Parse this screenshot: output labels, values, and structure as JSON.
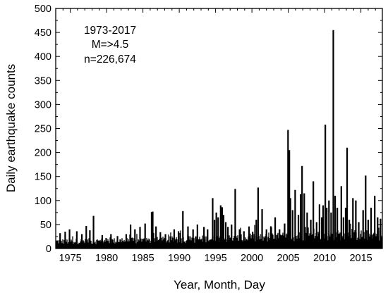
{
  "chart_data": {
    "type": "bar",
    "title": "",
    "xlabel": "Year, Month, Day",
    "ylabel": "Daily earthquake counts",
    "xlim": [
      1973,
      2017.95
    ],
    "ylim": [
      0,
      500
    ],
    "xticks": [
      1975,
      1980,
      1985,
      1990,
      1995,
      2000,
      2005,
      2010,
      2015
    ],
    "yticks": [
      0,
      50,
      100,
      150,
      200,
      250,
      300,
      350,
      400,
      450,
      500
    ],
    "grid": false,
    "legend": "none",
    "bar_color": "#000000",
    "annotation": [
      "1973-2017",
      "M=>4.5",
      "n=226,674"
    ],
    "total_events": 226674,
    "baseline": [
      [
        1973,
        16
      ],
      [
        1976,
        16
      ],
      [
        1980,
        17
      ],
      [
        1985,
        18
      ],
      [
        1990,
        20
      ],
      [
        1995,
        22
      ],
      [
        2000,
        23
      ],
      [
        2004,
        26
      ],
      [
        2008,
        29
      ],
      [
        2012,
        30
      ],
      [
        2017.95,
        30
      ]
    ],
    "peaks": [
      {
        "x": 1973.6,
        "y": 32
      },
      {
        "x": 1974.3,
        "y": 35
      },
      {
        "x": 1974.9,
        "y": 40
      },
      {
        "x": 1975.9,
        "y": 36
      },
      {
        "x": 1976.6,
        "y": 30
      },
      {
        "x": 1977.2,
        "y": 47
      },
      {
        "x": 1977.7,
        "y": 38
      },
      {
        "x": 1978.2,
        "y": 68
      },
      {
        "x": 1979.4,
        "y": 28
      },
      {
        "x": 1980.6,
        "y": 30
      },
      {
        "x": 1981.5,
        "y": 26
      },
      {
        "x": 1982.7,
        "y": 30
      },
      {
        "x": 1983.3,
        "y": 50
      },
      {
        "x": 1983.9,
        "y": 40
      },
      {
        "x": 1984.6,
        "y": 45
      },
      {
        "x": 1985.3,
        "y": 52
      },
      {
        "x": 1986.2,
        "y": 76
      },
      {
        "x": 1986.35,
        "y": 77
      },
      {
        "x": 1986.8,
        "y": 46
      },
      {
        "x": 1987.4,
        "y": 34
      },
      {
        "x": 1988.1,
        "y": 30
      },
      {
        "x": 1989.3,
        "y": 40
      },
      {
        "x": 1989.9,
        "y": 36
      },
      {
        "x": 1990.5,
        "y": 78
      },
      {
        "x": 1991.2,
        "y": 46
      },
      {
        "x": 1991.9,
        "y": 40
      },
      {
        "x": 1992.5,
        "y": 50
      },
      {
        "x": 1993.4,
        "y": 45
      },
      {
        "x": 1993.9,
        "y": 40
      },
      {
        "x": 1994.6,
        "y": 105
      },
      {
        "x": 1994.85,
        "y": 60
      },
      {
        "x": 1995.1,
        "y": 75
      },
      {
        "x": 1995.35,
        "y": 65
      },
      {
        "x": 1995.7,
        "y": 90
      },
      {
        "x": 1995.9,
        "y": 86
      },
      {
        "x": 1996.1,
        "y": 70
      },
      {
        "x": 1996.4,
        "y": 55
      },
      {
        "x": 1996.7,
        "y": 45
      },
      {
        "x": 1997.2,
        "y": 50
      },
      {
        "x": 1997.7,
        "y": 124
      },
      {
        "x": 1998.3,
        "y": 40
      },
      {
        "x": 1998.9,
        "y": 36
      },
      {
        "x": 1999.6,
        "y": 46
      },
      {
        "x": 2000.1,
        "y": 35
      },
      {
        "x": 2000.6,
        "y": 60
      },
      {
        "x": 2000.85,
        "y": 127
      },
      {
        "x": 2001.4,
        "y": 82
      },
      {
        "x": 2002.0,
        "y": 40
      },
      {
        "x": 2002.6,
        "y": 46
      },
      {
        "x": 2003.2,
        "y": 65
      },
      {
        "x": 2003.8,
        "y": 40
      },
      {
        "x": 2004.5,
        "y": 52
      },
      {
        "x": 2004.97,
        "y": 247
      },
      {
        "x": 2005.15,
        "y": 205
      },
      {
        "x": 2005.3,
        "y": 105
      },
      {
        "x": 2005.6,
        "y": 80
      },
      {
        "x": 2005.95,
        "y": 122
      },
      {
        "x": 2006.4,
        "y": 70
      },
      {
        "x": 2006.7,
        "y": 113
      },
      {
        "x": 2006.9,
        "y": 172
      },
      {
        "x": 2007.2,
        "y": 115
      },
      {
        "x": 2007.6,
        "y": 75
      },
      {
        "x": 2008.1,
        "y": 60
      },
      {
        "x": 2008.45,
        "y": 140
      },
      {
        "x": 2008.9,
        "y": 55
      },
      {
        "x": 2009.3,
        "y": 92
      },
      {
        "x": 2009.6,
        "y": 65
      },
      {
        "x": 2009.8,
        "y": 90
      },
      {
        "x": 2010.1,
        "y": 258
      },
      {
        "x": 2010.3,
        "y": 85
      },
      {
        "x": 2010.6,
        "y": 100
      },
      {
        "x": 2010.9,
        "y": 75
      },
      {
        "x": 2011.2,
        "y": 455
      },
      {
        "x": 2011.45,
        "y": 110
      },
      {
        "x": 2011.75,
        "y": 85
      },
      {
        "x": 2012.3,
        "y": 130
      },
      {
        "x": 2012.6,
        "y": 65
      },
      {
        "x": 2012.9,
        "y": 85
      },
      {
        "x": 2013.1,
        "y": 210
      },
      {
        "x": 2013.4,
        "y": 60
      },
      {
        "x": 2013.9,
        "y": 105
      },
      {
        "x": 2014.3,
        "y": 100
      },
      {
        "x": 2014.7,
        "y": 55
      },
      {
        "x": 2015.3,
        "y": 80
      },
      {
        "x": 2015.65,
        "y": 152
      },
      {
        "x": 2016.0,
        "y": 60
      },
      {
        "x": 2016.4,
        "y": 85
      },
      {
        "x": 2016.9,
        "y": 110
      },
      {
        "x": 2017.3,
        "y": 65
      },
      {
        "x": 2017.7,
        "y": 62
      }
    ]
  }
}
